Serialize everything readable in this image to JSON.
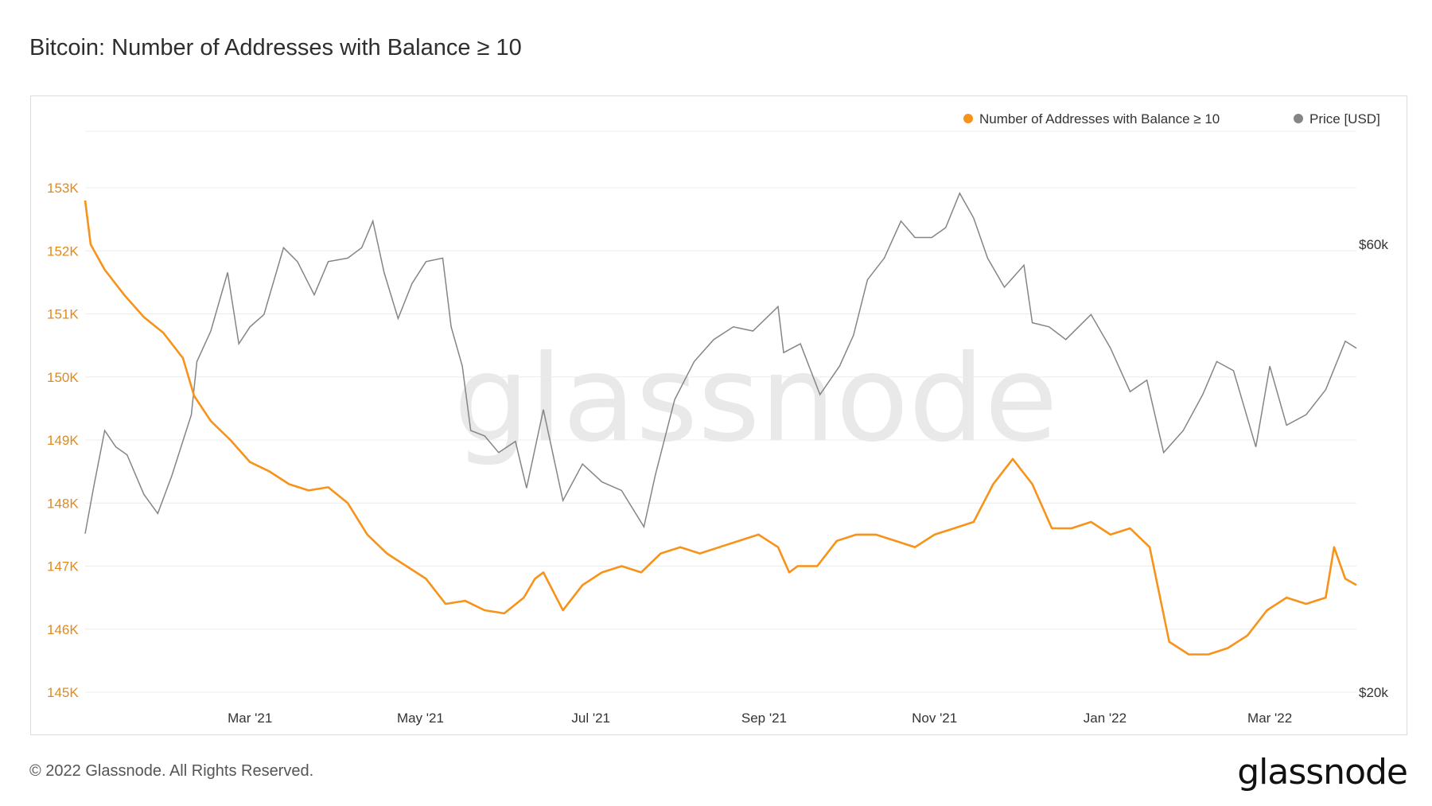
{
  "title": "Bitcoin: Number of Addresses with Balance ≥ 10",
  "footer": "© 2022 Glassnode. All Rights Reserved.",
  "brand": "glassnode",
  "watermark": "glassnode",
  "colors": {
    "addresses": "#f7931a",
    "price": "#858585",
    "grid": "#ececec",
    "left_ticks": "#e08a1e"
  },
  "chart_data": {
    "type": "line",
    "title": "Bitcoin: Number of Addresses with Balance ≥ 10",
    "x_range": [
      "2021-01-01",
      "2022-04-01"
    ],
    "x_tick_labels": [
      "Mar '21",
      "May '21",
      "Jul '21",
      "Sep '21",
      "Nov '21",
      "Jan '22",
      "Mar '22"
    ],
    "x_tick_dates": [
      "2021-03-01",
      "2021-05-01",
      "2021-07-01",
      "2021-09-01",
      "2021-11-01",
      "2022-01-01",
      "2022-03-01"
    ],
    "y_left": {
      "label": "Number of Addresses with Balance ≥ 10",
      "ylim": [
        145000,
        153000
      ],
      "tick_values": [
        145000,
        146000,
        147000,
        148000,
        149000,
        150000,
        151000,
        152000,
        153000
      ],
      "tick_labels": [
        "145K",
        "146K",
        "147K",
        "148K",
        "149K",
        "150K",
        "151K",
        "152K",
        "153K"
      ]
    },
    "y_right": {
      "label": "Price [USD]",
      "scale": "log",
      "ylim": [
        20000,
        70000
      ],
      "tick_values": [
        20000,
        60000
      ],
      "tick_labels": [
        "$20k",
        "$60k"
      ]
    },
    "legend": {
      "position": "top-right",
      "entries": [
        "Number of Addresses with Balance ≥ 10",
        "Price [USD]"
      ]
    },
    "series": [
      {
        "name": "Number of Addresses with Balance ≥ 10",
        "axis": "left",
        "dates": [
          "2021-01-01",
          "2021-01-03",
          "2021-01-08",
          "2021-01-15",
          "2021-01-22",
          "2021-01-29",
          "2021-02-05",
          "2021-02-09",
          "2021-02-15",
          "2021-02-22",
          "2021-03-01",
          "2021-03-08",
          "2021-03-15",
          "2021-03-22",
          "2021-03-29",
          "2021-04-05",
          "2021-04-12",
          "2021-04-19",
          "2021-04-26",
          "2021-05-03",
          "2021-05-10",
          "2021-05-17",
          "2021-05-24",
          "2021-05-31",
          "2021-06-07",
          "2021-06-11",
          "2021-06-14",
          "2021-06-21",
          "2021-06-28",
          "2021-07-05",
          "2021-07-12",
          "2021-07-19",
          "2021-07-26",
          "2021-08-02",
          "2021-08-09",
          "2021-08-16",
          "2021-08-23",
          "2021-08-30",
          "2021-09-06",
          "2021-09-10",
          "2021-09-13",
          "2021-09-20",
          "2021-09-27",
          "2021-10-04",
          "2021-10-11",
          "2021-10-18",
          "2021-10-25",
          "2021-11-01",
          "2021-11-08",
          "2021-11-15",
          "2021-11-22",
          "2021-11-29",
          "2021-12-06",
          "2021-12-13",
          "2021-12-20",
          "2021-12-27",
          "2022-01-03",
          "2022-01-10",
          "2022-01-17",
          "2022-01-24",
          "2022-01-31",
          "2022-02-07",
          "2022-02-14",
          "2022-02-21",
          "2022-02-28",
          "2022-03-07",
          "2022-03-14",
          "2022-03-21",
          "2022-03-24",
          "2022-03-28",
          "2022-04-01"
        ],
        "values": [
          152800,
          152100,
          151700,
          151300,
          150950,
          150700,
          150300,
          149700,
          149300,
          149000,
          148650,
          148500,
          148300,
          148200,
          148250,
          148000,
          147500,
          147200,
          147000,
          146800,
          146400,
          146450,
          146300,
          146250,
          146500,
          146800,
          146900,
          146300,
          146700,
          146900,
          147000,
          146900,
          147200,
          147300,
          147200,
          147300,
          147400,
          147500,
          147300,
          146900,
          147000,
          147000,
          147400,
          147500,
          147500,
          147400,
          147300,
          147500,
          147600,
          147700,
          148300,
          148700,
          148300,
          147600,
          147600,
          147700,
          147500,
          147600,
          147300,
          145800,
          145600,
          145600,
          145700,
          145900,
          146300,
          146500,
          146400,
          146500,
          147300,
          146800,
          146700
        ]
      },
      {
        "name": "Price [USD]",
        "axis": "right",
        "dates": [
          "2021-01-01",
          "2021-01-04",
          "2021-01-08",
          "2021-01-12",
          "2021-01-16",
          "2021-01-22",
          "2021-01-27",
          "2021-02-01",
          "2021-02-08",
          "2021-02-10",
          "2021-02-15",
          "2021-02-21",
          "2021-02-25",
          "2021-03-01",
          "2021-03-06",
          "2021-03-13",
          "2021-03-18",
          "2021-03-24",
          "2021-03-29",
          "2021-04-05",
          "2021-04-10",
          "2021-04-14",
          "2021-04-18",
          "2021-04-23",
          "2021-04-28",
          "2021-05-03",
          "2021-05-09",
          "2021-05-12",
          "2021-05-16",
          "2021-05-19",
          "2021-05-24",
          "2021-05-29",
          "2021-06-04",
          "2021-06-08",
          "2021-06-14",
          "2021-06-21",
          "2021-06-28",
          "2021-07-05",
          "2021-07-12",
          "2021-07-20",
          "2021-07-24",
          "2021-07-31",
          "2021-08-07",
          "2021-08-14",
          "2021-08-21",
          "2021-08-28",
          "2021-09-06",
          "2021-09-08",
          "2021-09-14",
          "2021-09-21",
          "2021-09-28",
          "2021-10-03",
          "2021-10-08",
          "2021-10-14",
          "2021-10-20",
          "2021-10-25",
          "2021-10-31",
          "2021-11-05",
          "2021-11-10",
          "2021-11-15",
          "2021-11-20",
          "2021-11-26",
          "2021-12-03",
          "2021-12-06",
          "2021-12-12",
          "2021-12-18",
          "2021-12-27",
          "2022-01-03",
          "2022-01-10",
          "2022-01-16",
          "2022-01-22",
          "2022-01-29",
          "2022-02-05",
          "2022-02-10",
          "2022-02-16",
          "2022-02-24",
          "2022-03-01",
          "2022-03-07",
          "2022-03-14",
          "2022-03-21",
          "2022-03-28",
          "2022-04-01"
        ],
        "values": [
          29500,
          33000,
          38000,
          36500,
          35800,
          32500,
          31000,
          34000,
          39500,
          45000,
          48500,
          56000,
          47000,
          49000,
          50500,
          59500,
          57500,
          53000,
          57500,
          58000,
          59500,
          63500,
          56000,
          50000,
          54500,
          57500,
          58000,
          49000,
          44500,
          38000,
          37500,
          36000,
          37000,
          33000,
          40000,
          32000,
          35000,
          33500,
          32800,
          30000,
          34000,
          41000,
          45000,
          47500,
          49000,
          48500,
          51500,
          46000,
          47000,
          41500,
          44500,
          48000,
          55000,
          58000,
          63500,
          61000,
          61000,
          62500,
          68000,
          64000,
          58000,
          54000,
          57000,
          49500,
          49000,
          47500,
          50500,
          46500,
          41800,
          43000,
          36000,
          38000,
          41500,
          45000,
          44000,
          36500,
          44500,
          38500,
          39500,
          42000,
          47300,
          46500
        ]
      }
    ]
  }
}
